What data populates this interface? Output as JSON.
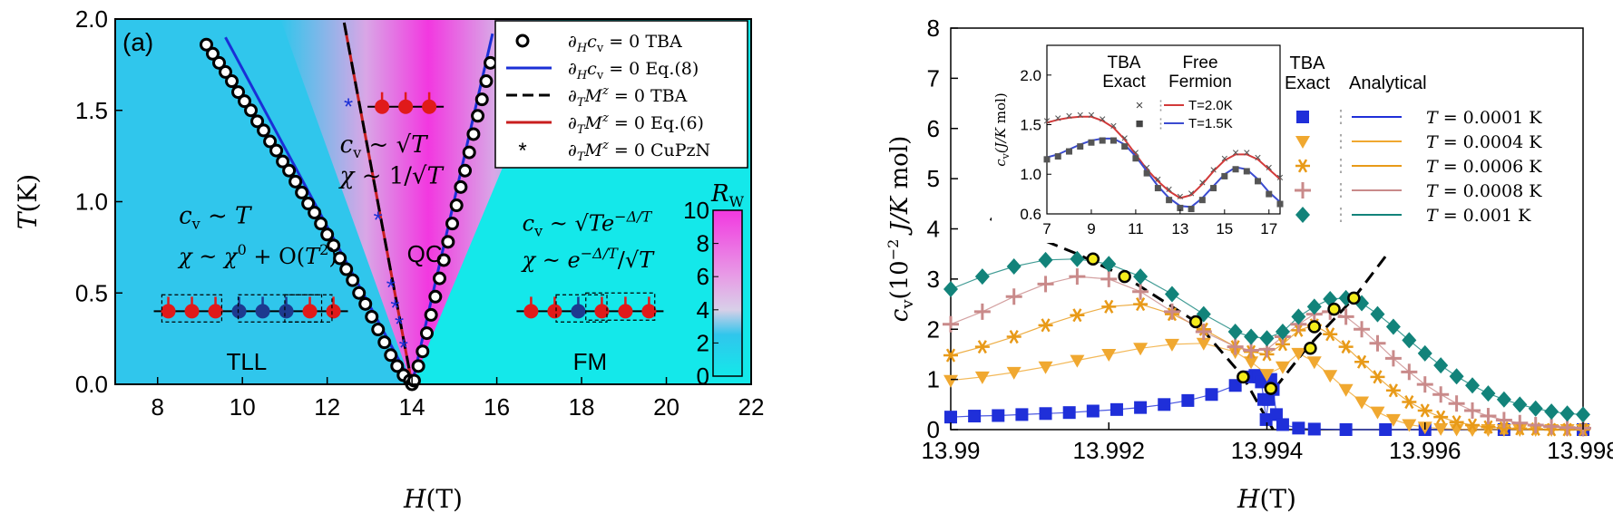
{
  "chart_data": [
    {
      "type": "scatter",
      "panel_label": "(a)",
      "xlabel": "H(T)",
      "ylabel": "T(K)",
      "xlim": [
        7,
        22
      ],
      "ylim": [
        0,
        2.0
      ],
      "x_ticks": [
        "8",
        "10",
        "12",
        "14",
        "16",
        "18",
        "20",
        "22"
      ],
      "y_ticks": [
        "0.0",
        "0.5",
        "1.0",
        "1.5",
        "2.0"
      ],
      "colorbar": {
        "label": "R_W",
        "ticks": [
          "0",
          "2",
          "4",
          "6",
          "8",
          "10"
        ],
        "range": [
          0,
          10
        ]
      },
      "legend": [
        {
          "label": "∂_H c_v = 0 TBA",
          "style": "circle"
        },
        {
          "label": "∂_H c_v = 0 Eq.(8)",
          "style": "solid",
          "color": "#1a2fd6"
        },
        {
          "label": "∂_T M^z = 0 TBA",
          "style": "dashed",
          "color": "#000000"
        },
        {
          "label": "∂_T M^z = 0 Eq.(6)",
          "style": "solid",
          "color": "#c81e1e"
        },
        {
          "label": "∂_T M^z = 0 CuPzN",
          "style": "star",
          "color": "#1a2fd6"
        }
      ],
      "series": [
        {
          "name": "∂_H c_v = 0 TBA (left)",
          "x": [
            9.15,
            9.3,
            9.45,
            9.6,
            9.75,
            9.9,
            10.05,
            10.2,
            10.35,
            10.5,
            10.65,
            10.8,
            10.95,
            11.1,
            11.25,
            11.4,
            11.55,
            11.7,
            11.85,
            12.0,
            12.15,
            12.3,
            12.45,
            12.6,
            12.75,
            12.9,
            13.05,
            13.2,
            13.35,
            13.5,
            13.65,
            13.8,
            13.95,
            14.0
          ],
          "y": [
            1.86,
            1.81,
            1.76,
            1.71,
            1.66,
            1.6,
            1.55,
            1.5,
            1.44,
            1.39,
            1.33,
            1.28,
            1.22,
            1.17,
            1.11,
            1.05,
            0.99,
            0.94,
            0.88,
            0.82,
            0.76,
            0.69,
            0.63,
            0.57,
            0.5,
            0.44,
            0.37,
            0.3,
            0.23,
            0.16,
            0.1,
            0.05,
            0.02,
            0.0
          ]
        },
        {
          "name": "∂_H c_v = 0 TBA (right)",
          "x": [
            14.05,
            14.15,
            14.25,
            14.35,
            14.45,
            14.55,
            14.65,
            14.75,
            14.85,
            14.95,
            15.05,
            15.15,
            15.25,
            15.35,
            15.45,
            15.55,
            15.65,
            15.75,
            15.85
          ],
          "y": [
            0.02,
            0.1,
            0.18,
            0.28,
            0.38,
            0.48,
            0.58,
            0.68,
            0.78,
            0.88,
            0.98,
            1.08,
            1.17,
            1.27,
            1.37,
            1.47,
            1.56,
            1.66,
            1.76
          ]
        },
        {
          "name": "∂_T M^z = 0 CuPzN",
          "x": [
            12.5,
            13.2,
            13.5,
            13.6,
            13.7,
            13.8
          ],
          "y": [
            1.52,
            0.9,
            0.53,
            0.42,
            0.33,
            0.2
          ]
        },
        {
          "name": "∂_H c_v = 0 Eq.(8)",
          "x": [
            9.6,
            14.0,
            15.9
          ],
          "y": [
            1.9,
            0.0,
            1.92
          ]
        },
        {
          "name": "∂_T M^z = 0 TBA",
          "x": [
            12.4,
            14.0
          ],
          "y": [
            1.98,
            0.0
          ]
        }
      ],
      "annotations": {
        "qc": "QC",
        "tll": "TLL",
        "fm": "FM",
        "qc_cv": "c_v ~ √T",
        "qc_chi": "χ ~ 1/√T",
        "tll_cv": "c_v ~ T",
        "tll_chi": "χ ~ χ⁰ + O(T²)",
        "fm_cv": "c_v ~ √T e^{-Δ/T}",
        "fm_chi": "χ ~ e^{-Δ/T}/√T"
      }
    },
    {
      "type": "line",
      "xlabel": "H(T)",
      "ylabel": "c_v (10⁻² J/K mol)",
      "xlim": [
        13.99,
        13.998
      ],
      "ylim": [
        0,
        8
      ],
      "x_ticks": [
        "13.99",
        "13.992",
        "13.994",
        "13.996",
        "13.998"
      ],
      "y_ticks": [
        "0",
        "1",
        "2",
        "3",
        "4",
        "5",
        "6",
        "7",
        "8"
      ],
      "legend_headers": {
        "left": "TBA Exact",
        "right": "Analytical"
      },
      "series": [
        {
          "name": "T = 0.0001 K",
          "color": "#1f2fd9",
          "marker": "square",
          "x": [
            13.99,
            13.9903,
            13.9906,
            13.9909,
            13.9912,
            13.9915,
            13.9918,
            13.9921,
            13.9924,
            13.9927,
            13.993,
            13.9933,
            13.9936,
            13.9938,
            13.99385,
            13.9939,
            13.99393,
            13.99396,
            13.99399,
            13.99402,
            13.99405,
            13.99408,
            13.99412,
            13.9942,
            13.9944,
            13.9946,
            13.995,
            13.9955,
            13.996,
            13.997,
            13.998
          ],
          "y": [
            0.25,
            0.27,
            0.28,
            0.3,
            0.32,
            0.34,
            0.37,
            0.4,
            0.44,
            0.5,
            0.58,
            0.7,
            0.88,
            1.05,
            1.08,
            1.05,
            0.95,
            0.6,
            0.2,
            0.6,
            1.0,
            0.8,
            0.3,
            0.1,
            0.03,
            0.01,
            0,
            0,
            0,
            0,
            0
          ]
        },
        {
          "name": "T = 0.0004 K",
          "color": "#f0a830",
          "marker": "triangle",
          "x": [
            13.99,
            13.9904,
            13.9908,
            13.9912,
            13.9916,
            13.992,
            13.9924,
            13.9928,
            13.9932,
            13.9936,
            13.9938,
            13.994,
            13.9942,
            13.9944,
            13.9946,
            13.9948,
            13.995,
            13.9952,
            13.9954,
            13.9956,
            13.9958,
            13.996,
            13.9962,
            13.9964,
            13.9966,
            13.9968,
            13.997,
            13.9972,
            13.9974,
            13.9976,
            13.9978,
            13.998
          ],
          "y": [
            0.98,
            1.05,
            1.14,
            1.25,
            1.38,
            1.5,
            1.62,
            1.7,
            1.72,
            1.55,
            1.35,
            1.1,
            1.25,
            1.52,
            1.35,
            1.08,
            0.8,
            0.55,
            0.35,
            0.2,
            0.1,
            0.05,
            0.02,
            0.01,
            0,
            0,
            0,
            0,
            0,
            0,
            0,
            0
          ]
        },
        {
          "name": "T = 0.0006 K",
          "color": "#e89a18",
          "marker": "asterisk",
          "x": [
            13.99,
            13.9904,
            13.9908,
            13.9912,
            13.9916,
            13.992,
            13.9924,
            13.9928,
            13.9932,
            13.9936,
            13.9938,
            13.994,
            13.9942,
            13.9944,
            13.9946,
            13.9948,
            13.995,
            13.9952,
            13.9954,
            13.9956,
            13.9958,
            13.996,
            13.9962,
            13.9964,
            13.9966,
            13.9968,
            13.997,
            13.9972,
            13.9974,
            13.9976,
            13.9978,
            13.998
          ],
          "y": [
            1.48,
            1.65,
            1.85,
            2.08,
            2.28,
            2.45,
            2.5,
            2.3,
            2.0,
            1.65,
            1.55,
            1.5,
            1.7,
            1.98,
            2.08,
            1.9,
            1.65,
            1.35,
            1.05,
            0.78,
            0.55,
            0.38,
            0.25,
            0.15,
            0.09,
            0.05,
            0.03,
            0.02,
            0.01,
            0,
            0,
            0
          ]
        },
        {
          "name": "T = 0.0008 K",
          "color": "#c98a8a",
          "marker": "plus",
          "x": [
            13.99,
            13.9904,
            13.9908,
            13.9912,
            13.9916,
            13.992,
            13.9924,
            13.9928,
            13.9932,
            13.9936,
            13.9938,
            13.994,
            13.9942,
            13.9944,
            13.9946,
            13.9948,
            13.995,
            13.9952,
            13.9954,
            13.9956,
            13.9958,
            13.996,
            13.9962,
            13.9964,
            13.9966,
            13.9968,
            13.997,
            13.9972,
            13.9974,
            13.9976,
            13.9978,
            13.998
          ],
          "y": [
            2.1,
            2.35,
            2.65,
            2.9,
            3.05,
            3.0,
            2.75,
            2.35,
            1.95,
            1.65,
            1.58,
            1.6,
            1.85,
            2.1,
            2.3,
            2.35,
            2.25,
            2.0,
            1.72,
            1.42,
            1.15,
            0.9,
            0.7,
            0.52,
            0.38,
            0.27,
            0.19,
            0.13,
            0.09,
            0.06,
            0.04,
            0.03
          ]
        },
        {
          "name": "T = 0.001 K",
          "color": "#12837a",
          "marker": "diamond",
          "x": [
            13.99,
            13.9904,
            13.9908,
            13.9912,
            13.9916,
            13.992,
            13.9924,
            13.9928,
            13.9932,
            13.9936,
            13.9938,
            13.994,
            13.9942,
            13.9944,
            13.9946,
            13.9948,
            13.995,
            13.9952,
            13.9954,
            13.9956,
            13.9958,
            13.996,
            13.9962,
            13.9964,
            13.9966,
            13.9968,
            13.997,
            13.9972,
            13.9974,
            13.9976,
            13.9978,
            13.998
          ],
          "y": [
            2.8,
            3.05,
            3.25,
            3.38,
            3.4,
            3.3,
            3.05,
            2.7,
            2.3,
            1.95,
            1.85,
            1.82,
            1.95,
            2.25,
            2.45,
            2.6,
            2.62,
            2.52,
            2.3,
            2.05,
            1.78,
            1.52,
            1.28,
            1.06,
            0.88,
            0.72,
            0.6,
            0.5,
            0.42,
            0.36,
            0.32,
            0.3
          ]
        },
        {
          "name": "maxima (yellow)",
          "color": "#f4ec1c",
          "marker": "circle",
          "x": [
            13.9918,
            13.9922,
            13.9931,
            13.9937,
            13.99405,
            13.99455,
            13.9946,
            13.99485,
            13.9951
          ],
          "y": [
            3.4,
            3.05,
            2.15,
            1.05,
            0.82,
            1.62,
            2.05,
            2.4,
            2.62
          ]
        }
      ],
      "inset": {
        "xlabel": "",
        "ylabel": "c_v (J/K mol)",
        "xlim": [
          7,
          17.5
        ],
        "ylim": [
          0.6,
          2.3
        ],
        "x_ticks": [
          "7",
          "9",
          "11",
          "13",
          "15",
          "17"
        ],
        "y_ticks": [
          "0.6",
          "1.0",
          "1.5",
          "2.0"
        ],
        "headers": {
          "left": "TBA Exact",
          "right": "Free Fermion"
        },
        "legend": [
          {
            "label": "T=2.0K",
            "marker": "×",
            "color": "#d23a3a"
          },
          {
            "label": "T=1.5K",
            "marker": "■",
            "color": "#3b4bd0"
          }
        ],
        "series": [
          {
            "name": "T=2.0K",
            "x": [
              7,
              7.5,
              8,
              8.5,
              9,
              9.5,
              10,
              10.5,
              11,
              11.5,
              12,
              12.5,
              13,
              13.5,
              14,
              14.5,
              15,
              15.5,
              16,
              16.5,
              17,
              17.5
            ],
            "y": [
              1.52,
              1.55,
              1.57,
              1.58,
              1.58,
              1.54,
              1.47,
              1.35,
              1.2,
              1.05,
              0.93,
              0.83,
              0.76,
              0.79,
              0.9,
              1.03,
              1.14,
              1.2,
              1.2,
              1.15,
              1.05,
              0.95
            ]
          },
          {
            "name": "T=1.5K",
            "x": [
              7,
              7.5,
              8,
              8.5,
              9,
              9.5,
              10,
              10.5,
              11,
              11.5,
              12,
              12.5,
              13,
              13.5,
              14,
              14.5,
              15,
              15.5,
              16,
              16.5,
              17,
              17.5
            ],
            "y": [
              1.17,
              1.2,
              1.25,
              1.3,
              1.34,
              1.36,
              1.36,
              1.3,
              1.18,
              1.03,
              0.88,
              0.76,
              0.68,
              0.67,
              0.76,
              0.88,
              1.0,
              1.07,
              1.05,
              0.95,
              0.82,
              0.72
            ]
          }
        ]
      }
    }
  ]
}
